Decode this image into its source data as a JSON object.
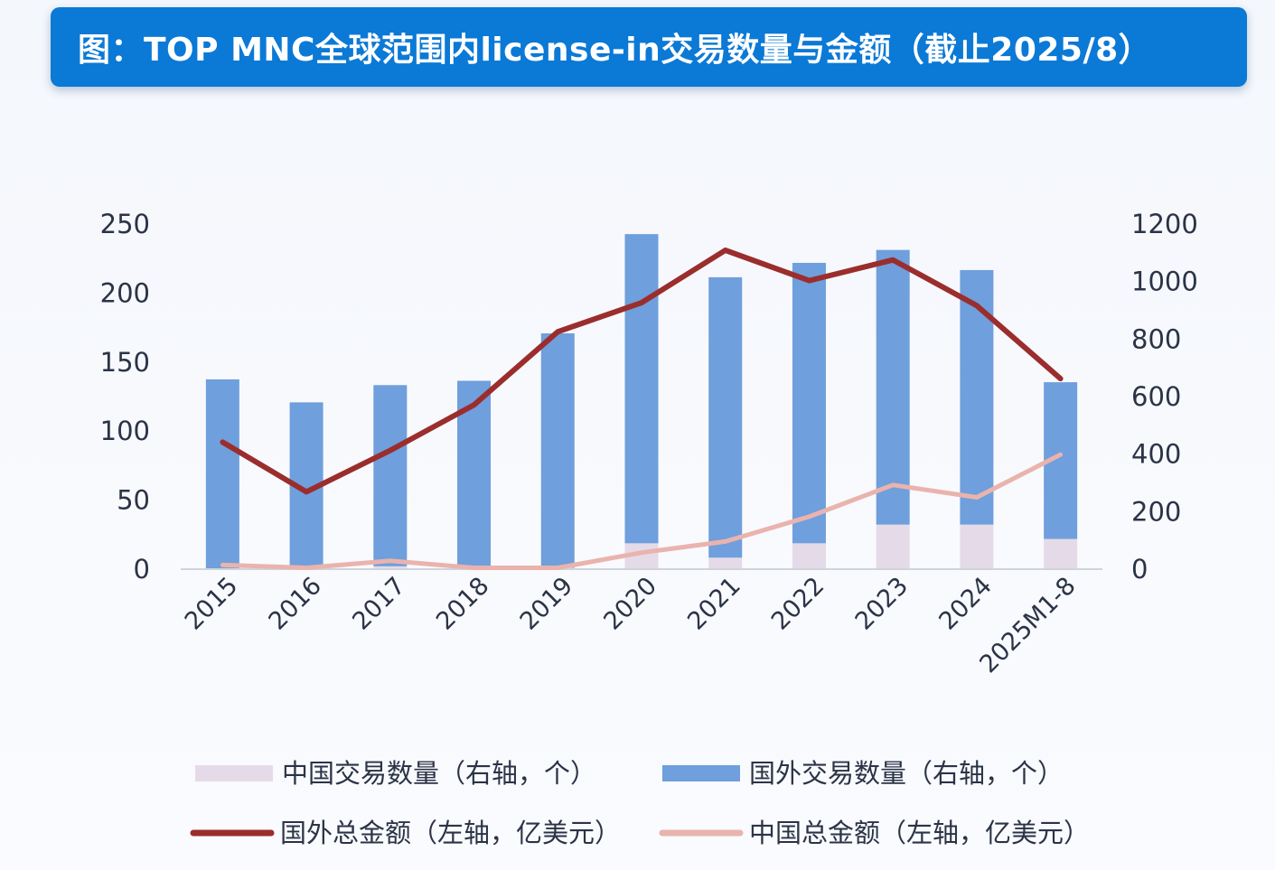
{
  "title": "图：TOP MNC全球范围内license-in交易数量与金额（截止2025/8）",
  "chart_data": {
    "type": "bar+line",
    "categories": [
      "2015",
      "2016",
      "2017",
      "2018",
      "2019",
      "2020",
      "2021",
      "2022",
      "2023",
      "2024",
      "2025M1-8"
    ],
    "left_axis": {
      "ylim": [
        0,
        250
      ],
      "ticks": [
        "0",
        "50",
        "100",
        "150",
        "200",
        "250"
      ]
    },
    "right_axis": {
      "ylim": [
        0,
        1200
      ],
      "ticks": [
        "0",
        "200",
        "400",
        "600",
        "800",
        "1000",
        "1200"
      ]
    },
    "series": [
      {
        "name": "中国交易数量（右轴，个）",
        "type": "bar",
        "axis": "right",
        "color": "#e5dbe8",
        "values": [
          0,
          0,
          10,
          5,
          5,
          90,
          40,
          90,
          155,
          155,
          105
        ]
      },
      {
        "name": "国外交易数量（右轴，个）",
        "type": "bar",
        "axis": "right",
        "color": "#6f9fdc",
        "values": [
          660,
          580,
          630,
          650,
          815,
          1075,
          975,
          975,
          955,
          885,
          545
        ]
      },
      {
        "name": "国外总金额（左轴，亿美元）",
        "type": "line",
        "axis": "left",
        "color": "#9b2d2d",
        "values": [
          92,
          56,
          86,
          119,
          172,
          193,
          231,
          209,
          224,
          191,
          138
        ]
      },
      {
        "name": "中国总金额（左轴，亿美元）",
        "type": "line",
        "axis": "left",
        "color": "#eab3ad",
        "values": [
          3,
          1,
          6,
          1,
          1,
          12,
          20,
          38,
          61,
          52,
          83
        ]
      }
    ],
    "legend_position": "bottom"
  }
}
